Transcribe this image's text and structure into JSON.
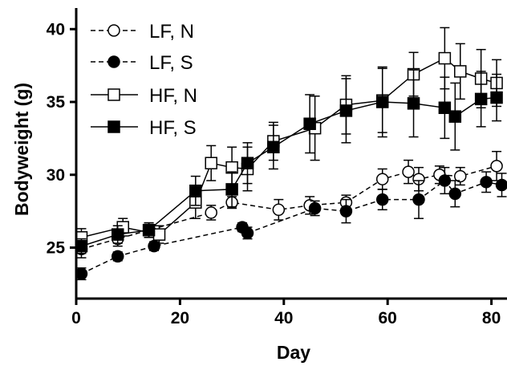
{
  "chart_data": {
    "type": "line",
    "title": "",
    "xlabel": "Day",
    "ylabel": "Bodyweight (g)",
    "xlim": [
      0,
      83
    ],
    "ylim": [
      21.5,
      42
    ],
    "x_ticks": [
      0,
      20,
      40,
      60,
      80
    ],
    "y_ticks": [
      25,
      30,
      35,
      40
    ],
    "grid": false,
    "legend_position": "top-left",
    "series": [
      {
        "name": "LF, N",
        "marker": "circle-open",
        "line": "dashed",
        "points": [
          {
            "x": 1,
            "y": 24.9,
            "err": 0.6
          },
          {
            "x": 8,
            "y": 25.6,
            "err": 0.5
          },
          {
            "x": 14,
            "y": 26.2,
            "err": 0.5
          },
          {
            "x": 26,
            "y": 27.4,
            "err": 0.5
          },
          {
            "x": 30,
            "y": 28.1,
            "err": 0.4
          },
          {
            "x": 39,
            "y": 27.6,
            "err": 0.7
          },
          {
            "x": 45,
            "y": 27.9,
            "err": 0.6
          },
          {
            "x": 52,
            "y": 28.1,
            "err": 0.5
          },
          {
            "x": 59,
            "y": 29.7,
            "err": 0.7
          },
          {
            "x": 64,
            "y": 30.2,
            "err": 0.8
          },
          {
            "x": 66,
            "y": 29.7,
            "err": 0.8
          },
          {
            "x": 70,
            "y": 30.0,
            "err": 0.6
          },
          {
            "x": 74,
            "y": 29.9,
            "err": 0.6
          },
          {
            "x": 81,
            "y": 30.6,
            "err": 1.0
          }
        ]
      },
      {
        "name": "LF, S",
        "marker": "circle-filled",
        "line": "dashed",
        "points": [
          {
            "x": 1,
            "y": 23.2,
            "err": 0.4
          },
          {
            "x": 8,
            "y": 24.4,
            "err": 0.3
          },
          {
            "x": 15,
            "y": 25.1,
            "err": 0.3
          },
          {
            "x": 32,
            "y": 26.4,
            "err": 0.3
          },
          {
            "x": 33,
            "y": 26.0,
            "err": 0.4
          },
          {
            "x": 46,
            "y": 27.7,
            "err": 0.5
          },
          {
            "x": 52,
            "y": 27.5,
            "err": 0.8
          },
          {
            "x": 59,
            "y": 28.3,
            "err": 0.7
          },
          {
            "x": 66,
            "y": 28.3,
            "err": 1.3
          },
          {
            "x": 71,
            "y": 29.6,
            "err": 0.9
          },
          {
            "x": 73,
            "y": 28.7,
            "err": 0.9
          },
          {
            "x": 79,
            "y": 29.5,
            "err": 0.7
          },
          {
            "x": 82,
            "y": 29.3,
            "err": 0.8
          }
        ]
      },
      {
        "name": "HF, N",
        "marker": "square-open",
        "line": "solid",
        "points": [
          {
            "x": 1,
            "y": 25.7,
            "err": 0.6
          },
          {
            "x": 9,
            "y": 26.4,
            "err": 0.6
          },
          {
            "x": 16,
            "y": 25.9,
            "err": 0.6
          },
          {
            "x": 23,
            "y": 28.1,
            "err": 1.1
          },
          {
            "x": 26,
            "y": 30.8,
            "err": 1.2
          },
          {
            "x": 30,
            "y": 30.5,
            "err": 1.4
          },
          {
            "x": 33,
            "y": 30.4,
            "err": 1.5
          },
          {
            "x": 38,
            "y": 32.3,
            "err": 1.3
          },
          {
            "x": 46,
            "y": 33.2,
            "err": 2.2
          },
          {
            "x": 52,
            "y": 34.8,
            "err": 2.0
          },
          {
            "x": 59,
            "y": 35.1,
            "err": 2.2
          },
          {
            "x": 65,
            "y": 36.9,
            "err": 1.5
          },
          {
            "x": 71,
            "y": 38.0,
            "err": 2.1
          },
          {
            "x": 74,
            "y": 37.1,
            "err": 1.9
          },
          {
            "x": 78,
            "y": 36.6,
            "err": 2.0
          },
          {
            "x": 81,
            "y": 36.3,
            "err": 1.6
          }
        ]
      },
      {
        "name": "HF, S",
        "marker": "square-filled",
        "line": "solid",
        "points": [
          {
            "x": 1,
            "y": 25.1,
            "err": 0.5
          },
          {
            "x": 8,
            "y": 25.9,
            "err": 0.6
          },
          {
            "x": 14,
            "y": 26.2,
            "err": 0.5
          },
          {
            "x": 23,
            "y": 28.9,
            "err": 1.0
          },
          {
            "x": 30,
            "y": 29.0,
            "err": 1.2
          },
          {
            "x": 33,
            "y": 30.8,
            "err": 1.4
          },
          {
            "x": 38,
            "y": 31.9,
            "err": 1.5
          },
          {
            "x": 45,
            "y": 33.5,
            "err": 2.0
          },
          {
            "x": 52,
            "y": 34.4,
            "err": 2.2
          },
          {
            "x": 59,
            "y": 35.0,
            "err": 2.4
          },
          {
            "x": 65,
            "y": 34.9,
            "err": 2.3
          },
          {
            "x": 71,
            "y": 34.6,
            "err": 2.1
          },
          {
            "x": 73,
            "y": 34.0,
            "err": 2.3
          },
          {
            "x": 78,
            "y": 35.2,
            "err": 1.9
          },
          {
            "x": 81,
            "y": 35.3,
            "err": 1.6
          }
        ]
      }
    ]
  }
}
